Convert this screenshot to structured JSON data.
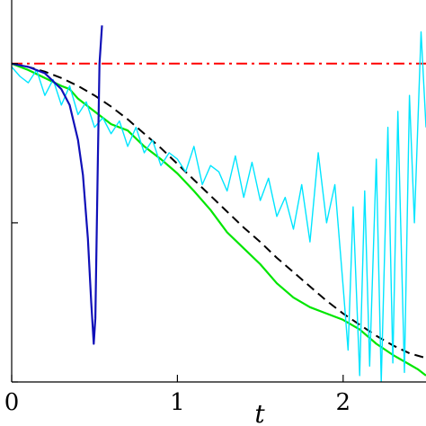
{
  "chart_data": {
    "type": "line",
    "title": "",
    "xlabel": "t",
    "ylabel": "",
    "xlim": [
      0,
      2.5
    ],
    "ylim": [
      0,
      1
    ],
    "grid": false,
    "legend": "none",
    "x_ticks": [
      "0",
      "1",
      "2"
    ],
    "x_tick_values": [
      0,
      1,
      2
    ],
    "series": [
      {
        "color": "#ff0000",
        "style": "dash-dot",
        "x": [
          0,
          2.5
        ],
        "y": [
          1.0,
          1.0
        ]
      },
      {
        "color": "#000000",
        "style": "dashed",
        "x": [
          0,
          0.1,
          0.2,
          0.3,
          0.4,
          0.5,
          0.6,
          0.7,
          0.8,
          0.9,
          1.0,
          1.1,
          1.2,
          1.3,
          1.4,
          1.5,
          1.6,
          1.7,
          1.8,
          1.9,
          2.0,
          2.1,
          2.2,
          2.3,
          2.4,
          2.5
        ],
        "y": [
          1.0,
          0.99,
          0.975,
          0.955,
          0.93,
          0.9,
          0.865,
          0.825,
          0.78,
          0.735,
          0.685,
          0.635,
          0.585,
          0.535,
          0.485,
          0.44,
          0.39,
          0.345,
          0.3,
          0.255,
          0.215,
          0.18,
          0.145,
          0.115,
          0.09,
          0.075
        ]
      },
      {
        "color": "#00e600",
        "style": "solid",
        "x": [
          0,
          0.1,
          0.2,
          0.3,
          0.35,
          0.4,
          0.5,
          0.6,
          0.7,
          0.8,
          0.9,
          1.0,
          1.1,
          1.2,
          1.3,
          1.4,
          1.5,
          1.6,
          1.7,
          1.8,
          1.9,
          2.0,
          2.1,
          2.2,
          2.3,
          2.4,
          2.45,
          2.5
        ],
        "y": [
          1.0,
          0.98,
          0.955,
          0.93,
          0.92,
          0.89,
          0.85,
          0.81,
          0.79,
          0.74,
          0.7,
          0.655,
          0.6,
          0.54,
          0.47,
          0.42,
          0.37,
          0.31,
          0.265,
          0.235,
          0.215,
          0.195,
          0.165,
          0.12,
          0.085,
          0.055,
          0.04,
          0.02
        ]
      },
      {
        "color": "#00e5ff",
        "style": "solid",
        "x": [
          0,
          0.05,
          0.1,
          0.15,
          0.2,
          0.25,
          0.3,
          0.35,
          0.4,
          0.45,
          0.5,
          0.55,
          0.6,
          0.65,
          0.7,
          0.75,
          0.8,
          0.85,
          0.9,
          0.95,
          1.0,
          1.05,
          1.1,
          1.15,
          1.2,
          1.25,
          1.3,
          1.35,
          1.4,
          1.45,
          1.5,
          1.55,
          1.6,
          1.65,
          1.7,
          1.75,
          1.8,
          1.85,
          1.9,
          1.95,
          2.0,
          2.03,
          2.06,
          2.1,
          2.13,
          2.16,
          2.2,
          2.23,
          2.27,
          2.3,
          2.33,
          2.37,
          2.4,
          2.43,
          2.47,
          2.5
        ],
        "y": [
          0.99,
          0.96,
          0.94,
          0.98,
          0.9,
          0.95,
          0.87,
          0.93,
          0.84,
          0.88,
          0.8,
          0.83,
          0.78,
          0.82,
          0.74,
          0.8,
          0.72,
          0.76,
          0.68,
          0.72,
          0.7,
          0.66,
          0.74,
          0.62,
          0.68,
          0.66,
          0.6,
          0.71,
          0.58,
          0.69,
          0.57,
          0.64,
          0.52,
          0.58,
          0.48,
          0.62,
          0.44,
          0.72,
          0.5,
          0.62,
          0.3,
          0.1,
          0.55,
          0.02,
          0.6,
          0.05,
          0.7,
          0.0,
          0.8,
          0.06,
          0.85,
          0.03,
          0.9,
          0.5,
          1.1,
          0.8
        ]
      },
      {
        "color": "#1010b8",
        "style": "solid",
        "x": [
          0,
          0.1,
          0.2,
          0.3,
          0.35,
          0.4,
          0.43,
          0.46,
          0.48,
          0.495,
          0.505,
          0.52,
          0.53,
          0.545
        ],
        "y": [
          1.0,
          0.99,
          0.97,
          0.92,
          0.87,
          0.76,
          0.65,
          0.45,
          0.25,
          0.12,
          0.2,
          0.7,
          1.0,
          1.12
        ]
      }
    ]
  }
}
